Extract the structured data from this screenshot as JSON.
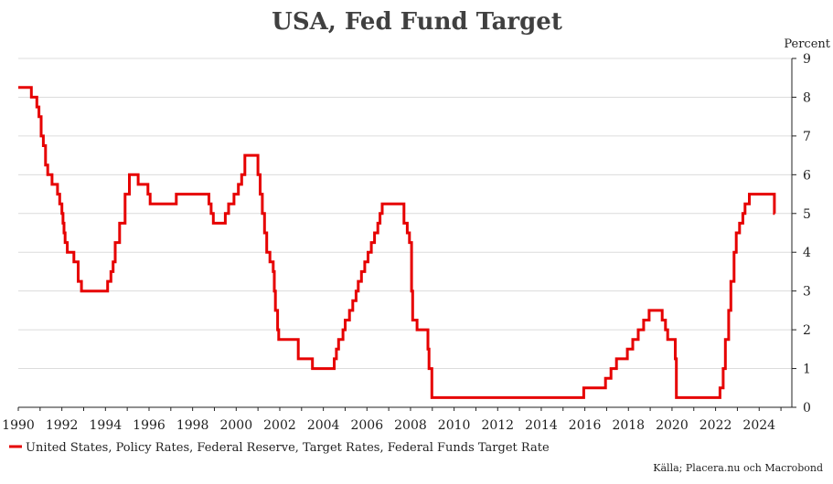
{
  "chart_data": {
    "type": "line",
    "title": "USA, Fed Fund Target",
    "unit_label": "Percent",
    "source": "Källa; Placera.nu och Macrobond",
    "xlabel": "",
    "ylabel": "",
    "xlim": [
      1990,
      2025.5
    ],
    "ylim": [
      0,
      9
    ],
    "x_ticks": [
      "1990",
      "1992",
      "1994",
      "1996",
      "1998",
      "2000",
      "2002",
      "2004",
      "2006",
      "2008",
      "2010",
      "2012",
      "2014",
      "2016",
      "2018",
      "2020",
      "2022",
      "2024"
    ],
    "y_ticks": [
      "0",
      "1",
      "2",
      "3",
      "4",
      "5",
      "6",
      "7",
      "8",
      "9"
    ],
    "y_axis_side": "right",
    "grid": "horizontal",
    "legend_position": "bottom-left",
    "series": [
      {
        "name": "United States, Policy Rates, Federal Reserve, Target Rates, Federal Funds Target Rate",
        "color": "#e60000",
        "step": true,
        "points": [
          [
            1990.0,
            8.25
          ],
          [
            1990.6,
            8.0
          ],
          [
            1990.85,
            7.75
          ],
          [
            1990.95,
            7.5
          ],
          [
            1991.05,
            7.0
          ],
          [
            1991.15,
            6.75
          ],
          [
            1991.25,
            6.25
          ],
          [
            1991.35,
            6.0
          ],
          [
            1991.55,
            5.75
          ],
          [
            1991.8,
            5.5
          ],
          [
            1991.9,
            5.25
          ],
          [
            1992.0,
            5.0
          ],
          [
            1992.05,
            4.75
          ],
          [
            1992.1,
            4.5
          ],
          [
            1992.15,
            4.25
          ],
          [
            1992.25,
            4.0
          ],
          [
            1992.55,
            3.75
          ],
          [
            1992.75,
            3.25
          ],
          [
            1992.9,
            3.0
          ],
          [
            1994.1,
            3.25
          ],
          [
            1994.25,
            3.5
          ],
          [
            1994.35,
            3.75
          ],
          [
            1994.45,
            4.25
          ],
          [
            1994.65,
            4.75
          ],
          [
            1994.9,
            5.5
          ],
          [
            1995.1,
            6.0
          ],
          [
            1995.5,
            5.75
          ],
          [
            1995.95,
            5.5
          ],
          [
            1996.05,
            5.25
          ],
          [
            1997.25,
            5.5
          ],
          [
            1998.75,
            5.25
          ],
          [
            1998.85,
            5.0
          ],
          [
            1998.95,
            4.75
          ],
          [
            1999.5,
            5.0
          ],
          [
            1999.65,
            5.25
          ],
          [
            1999.9,
            5.5
          ],
          [
            2000.1,
            5.75
          ],
          [
            2000.25,
            6.0
          ],
          [
            2000.4,
            6.5
          ],
          [
            2001.0,
            6.0
          ],
          [
            2001.1,
            5.5
          ],
          [
            2001.2,
            5.0
          ],
          [
            2001.3,
            4.5
          ],
          [
            2001.4,
            4.0
          ],
          [
            2001.55,
            3.75
          ],
          [
            2001.7,
            3.5
          ],
          [
            2001.75,
            3.0
          ],
          [
            2001.8,
            2.5
          ],
          [
            2001.9,
            2.0
          ],
          [
            2001.95,
            1.75
          ],
          [
            2002.85,
            1.25
          ],
          [
            2003.5,
            1.0
          ],
          [
            2004.5,
            1.25
          ],
          [
            2004.6,
            1.5
          ],
          [
            2004.7,
            1.75
          ],
          [
            2004.9,
            2.0
          ],
          [
            2005.0,
            2.25
          ],
          [
            2005.2,
            2.5
          ],
          [
            2005.35,
            2.75
          ],
          [
            2005.5,
            3.0
          ],
          [
            2005.6,
            3.25
          ],
          [
            2005.75,
            3.5
          ],
          [
            2005.9,
            3.75
          ],
          [
            2006.05,
            4.0
          ],
          [
            2006.2,
            4.25
          ],
          [
            2006.35,
            4.5
          ],
          [
            2006.5,
            4.75
          ],
          [
            2006.6,
            5.0
          ],
          [
            2006.7,
            5.25
          ],
          [
            2007.7,
            4.75
          ],
          [
            2007.85,
            4.5
          ],
          [
            2007.95,
            4.25
          ],
          [
            2008.05,
            3.0
          ],
          [
            2008.1,
            2.25
          ],
          [
            2008.3,
            2.0
          ],
          [
            2008.8,
            1.5
          ],
          [
            2008.85,
            1.0
          ],
          [
            2008.98,
            0.25
          ],
          [
            2015.95,
            0.5
          ],
          [
            2016.95,
            0.75
          ],
          [
            2017.2,
            1.0
          ],
          [
            2017.45,
            1.25
          ],
          [
            2017.95,
            1.5
          ],
          [
            2018.2,
            1.75
          ],
          [
            2018.45,
            2.0
          ],
          [
            2018.7,
            2.25
          ],
          [
            2018.95,
            2.5
          ],
          [
            2019.55,
            2.25
          ],
          [
            2019.7,
            2.0
          ],
          [
            2019.8,
            1.75
          ],
          [
            2020.15,
            1.25
          ],
          [
            2020.2,
            0.25
          ],
          [
            2022.2,
            0.5
          ],
          [
            2022.35,
            1.0
          ],
          [
            2022.45,
            1.75
          ],
          [
            2022.6,
            2.5
          ],
          [
            2022.7,
            3.25
          ],
          [
            2022.85,
            4.0
          ],
          [
            2022.95,
            4.5
          ],
          [
            2023.1,
            4.75
          ],
          [
            2023.25,
            5.0
          ],
          [
            2023.35,
            5.25
          ],
          [
            2023.55,
            5.5
          ],
          [
            2024.7,
            5.0
          ],
          [
            2024.72,
            5.0
          ]
        ]
      }
    ]
  }
}
